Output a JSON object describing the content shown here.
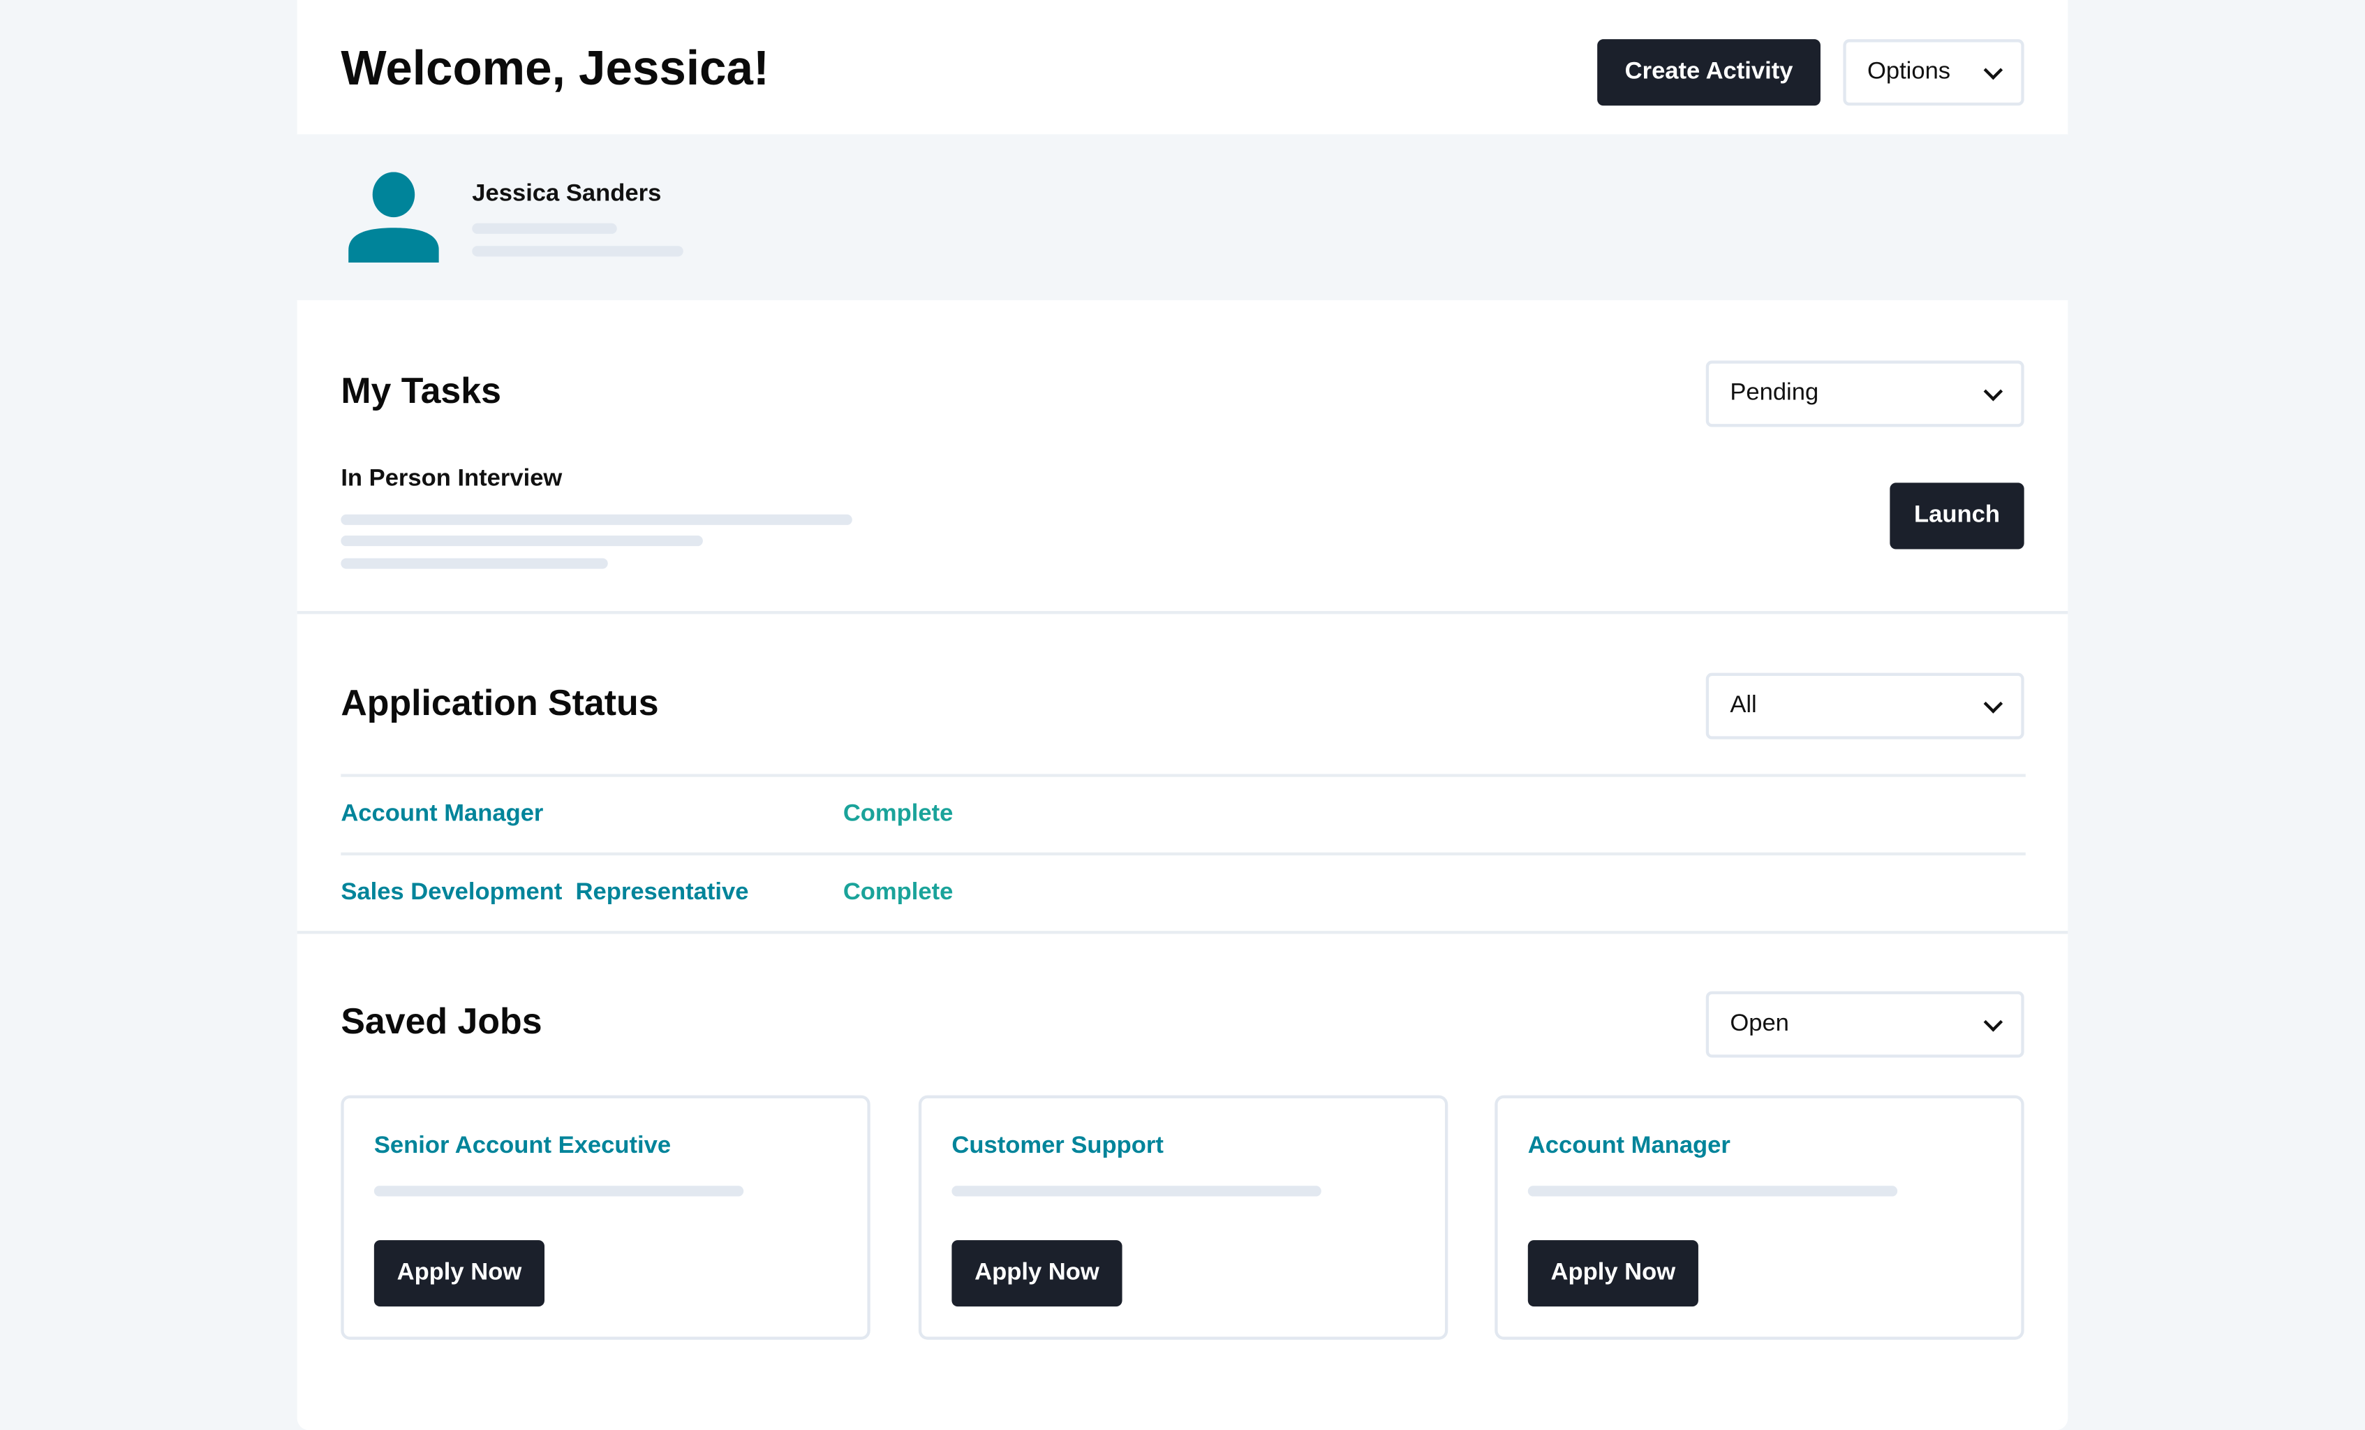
{
  "header": {
    "title": "Welcome, Jessica!",
    "create_label": "Create Activity",
    "options_label": "Options"
  },
  "profile": {
    "name": "Jessica Sanders",
    "avatar_icon": "user-icon"
  },
  "tasks": {
    "title": "My Tasks",
    "filter": "Pending",
    "task_name": "In Person Interview",
    "launch_label": "Launch"
  },
  "applications": {
    "title": "Application Status",
    "filter": "All",
    "rows": [
      {
        "job": "Account Manager",
        "status": "Complete"
      },
      {
        "job": "Sales Development  Representative",
        "status": "Complete"
      }
    ]
  },
  "saved": {
    "title": "Saved Jobs",
    "filter": "Open",
    "jobs": [
      {
        "title": "Senior Account Executive",
        "apply": "Apply Now"
      },
      {
        "title": "Customer Support",
        "apply": "Apply Now"
      },
      {
        "title": "Account Manager",
        "apply": "Apply Now"
      }
    ]
  },
  "colors": {
    "dark": "#1b202b",
    "link": "#00849a",
    "status": "#1aa39a",
    "avatar": "#00849a",
    "background": "#f3f6f9"
  }
}
